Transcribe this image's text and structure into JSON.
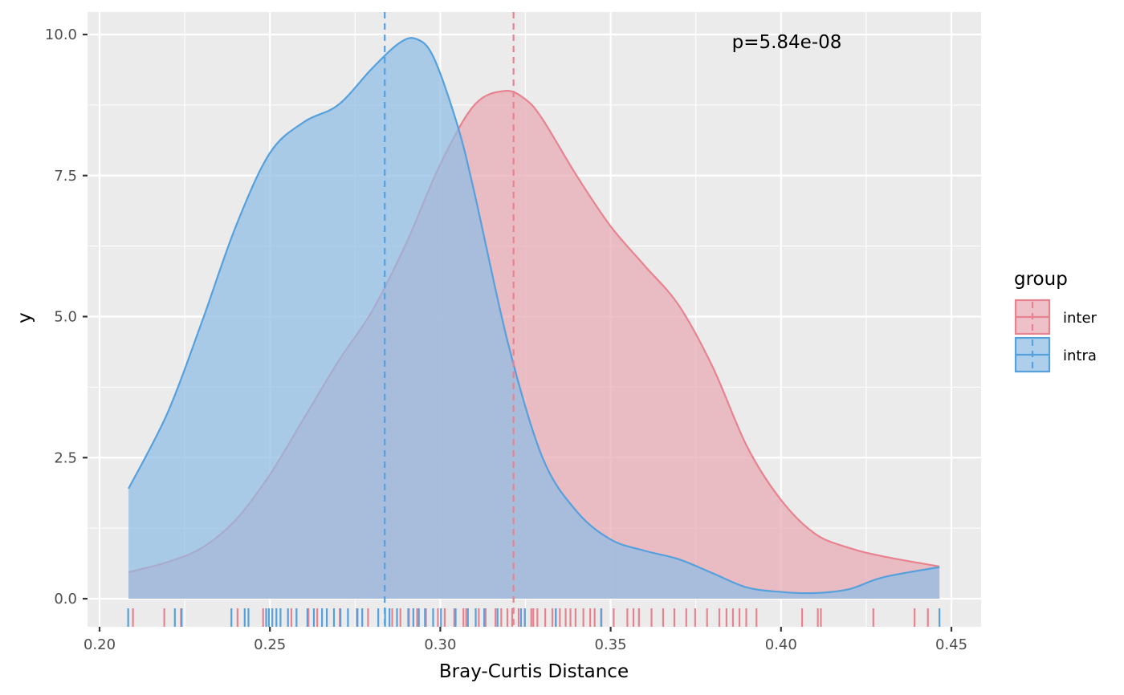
{
  "chart_data": {
    "type": "area",
    "title": "",
    "xlabel": "Bray-Curtis Distance",
    "ylabel": "y",
    "xlim": [
      0.2,
      0.45
    ],
    "ylim": [
      0,
      10
    ],
    "x_ticks": [
      0.2,
      0.25,
      0.3,
      0.35,
      0.4,
      0.45
    ],
    "x_tick_labels": [
      "0.20",
      "0.25",
      "0.30",
      "0.35",
      "0.40",
      "0.45"
    ],
    "y_ticks": [
      0,
      2.5,
      5,
      7.5,
      10
    ],
    "y_tick_labels": [
      "0.0",
      "2.5",
      "5.0",
      "7.5",
      "10.0"
    ],
    "grid": true,
    "legend": {
      "title": "group",
      "position": "right"
    },
    "annotation": "p=5.84e-08",
    "series": [
      {
        "name": "inter",
        "color": "#e7838f",
        "fill": "#e8a9b4",
        "mean": 0.3215,
        "density": [
          [
            0.2085,
            0.47
          ],
          [
            0.22,
            0.65
          ],
          [
            0.23,
            0.9
          ],
          [
            0.24,
            1.4
          ],
          [
            0.25,
            2.2
          ],
          [
            0.26,
            3.2
          ],
          [
            0.27,
            4.2
          ],
          [
            0.28,
            5.1
          ],
          [
            0.29,
            6.3
          ],
          [
            0.3,
            7.7
          ],
          [
            0.31,
            8.75
          ],
          [
            0.319,
            9.0
          ],
          [
            0.325,
            8.85
          ],
          [
            0.33,
            8.5
          ],
          [
            0.34,
            7.5
          ],
          [
            0.35,
            6.6
          ],
          [
            0.36,
            5.9
          ],
          [
            0.37,
            5.2
          ],
          [
            0.38,
            4.1
          ],
          [
            0.39,
            2.7
          ],
          [
            0.4,
            1.75
          ],
          [
            0.41,
            1.15
          ],
          [
            0.42,
            0.9
          ],
          [
            0.43,
            0.75
          ],
          [
            0.4465,
            0.57
          ]
        ],
        "rug": [
          0.2098,
          0.219,
          0.2239,
          0.2405,
          0.248,
          0.2563,
          0.2613,
          0.2639,
          0.2705,
          0.2755,
          0.2788,
          0.2859,
          0.2883,
          0.2908,
          0.2932,
          0.2958,
          0.2993,
          0.3013,
          0.3041,
          0.3068,
          0.3076,
          0.3113,
          0.3133,
          0.3162,
          0.3179,
          0.3197,
          0.3211,
          0.323,
          0.3248,
          0.3267,
          0.3273,
          0.3285,
          0.3308,
          0.3329,
          0.3339,
          0.3351,
          0.3368,
          0.3382,
          0.3397,
          0.342,
          0.344,
          0.3453,
          0.3473,
          0.3509,
          0.3549,
          0.3567,
          0.3583,
          0.362,
          0.3654,
          0.3687,
          0.3722,
          0.3748,
          0.3783,
          0.3819,
          0.384,
          0.3859,
          0.3878,
          0.3898,
          0.3928,
          0.4062,
          0.4108,
          0.4117,
          0.4271,
          0.4392,
          0.4431
        ]
      },
      {
        "name": "intra",
        "color": "#56a0dc",
        "fill": "#8fbde5",
        "mean": 0.2837,
        "density": [
          [
            0.2085,
            1.95
          ],
          [
            0.22,
            3.3
          ],
          [
            0.23,
            4.9
          ],
          [
            0.24,
            6.6
          ],
          [
            0.25,
            7.9
          ],
          [
            0.26,
            8.45
          ],
          [
            0.27,
            8.75
          ],
          [
            0.28,
            9.4
          ],
          [
            0.288,
            9.85
          ],
          [
            0.293,
            9.92
          ],
          [
            0.298,
            9.6
          ],
          [
            0.305,
            8.4
          ],
          [
            0.31,
            7.2
          ],
          [
            0.32,
            4.5
          ],
          [
            0.33,
            2.5
          ],
          [
            0.34,
            1.55
          ],
          [
            0.35,
            1.05
          ],
          [
            0.36,
            0.85
          ],
          [
            0.37,
            0.7
          ],
          [
            0.38,
            0.45
          ],
          [
            0.39,
            0.2
          ],
          [
            0.4,
            0.12
          ],
          [
            0.41,
            0.1
          ],
          [
            0.42,
            0.17
          ],
          [
            0.43,
            0.38
          ],
          [
            0.4465,
            0.56
          ]
        ],
        "rug": [
          0.2084,
          0.2221,
          0.2241,
          0.2387,
          0.2426,
          0.2437,
          0.2489,
          0.2497,
          0.2507,
          0.2519,
          0.2531,
          0.2553,
          0.2578,
          0.261,
          0.2629,
          0.2653,
          0.2667,
          0.2688,
          0.2707,
          0.2729,
          0.2757,
          0.2771,
          0.2818,
          0.2838,
          0.2851,
          0.2873,
          0.2906,
          0.2921,
          0.2937,
          0.2955,
          0.2979,
          0.3002,
          0.3045,
          0.3081,
          0.3104,
          0.3129,
          0.3168,
          0.3237,
          0.3248,
          0.3339,
          0.3472,
          0.4465
        ]
      }
    ]
  }
}
